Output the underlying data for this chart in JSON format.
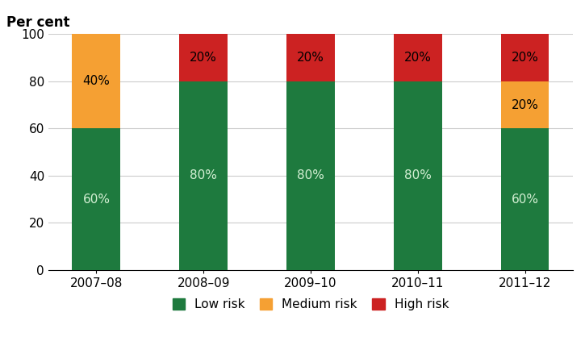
{
  "categories": [
    "2007–08",
    "2008–09",
    "2009–10",
    "2010–11",
    "2011–12"
  ],
  "low_risk": [
    60,
    80,
    80,
    80,
    60
  ],
  "medium_risk": [
    40,
    0,
    0,
    0,
    20
  ],
  "high_risk": [
    0,
    20,
    20,
    20,
    20
  ],
  "low_color": "#1e7a3e",
  "medium_color": "#f5a033",
  "high_color": "#cc2222",
  "ylabel": "Per cent",
  "ylim": [
    0,
    100
  ],
  "yticks": [
    0,
    20,
    40,
    60,
    80,
    100
  ],
  "legend_labels": [
    "Low risk",
    "Medium risk",
    "High risk"
  ],
  "bar_width": 0.45,
  "low_label_color": "#d4f0d4",
  "med_label_color": "#000000",
  "high_label_color": "#000000",
  "label_fontsize": 11,
  "axis_fontsize": 11,
  "ylabel_fontsize": 12,
  "legend_fontsize": 11,
  "background_color": "#ffffff",
  "grid_color": "#cccccc"
}
